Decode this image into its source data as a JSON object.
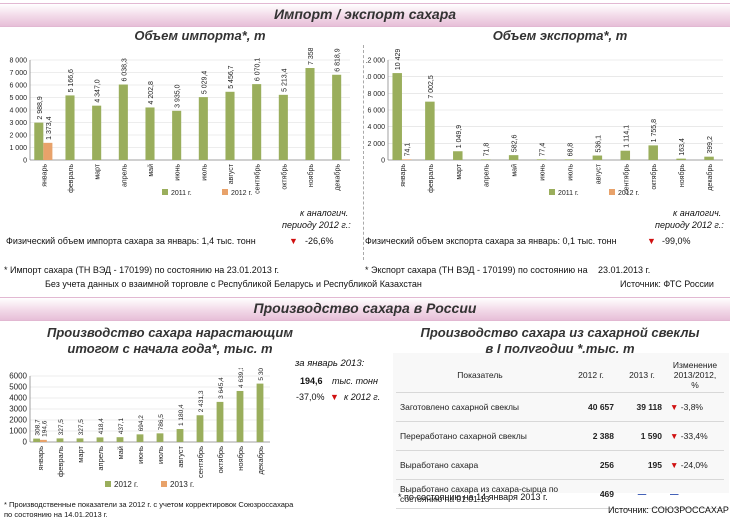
{
  "import_export": {
    "band_title": "Импорт / экспорт сахара",
    "import_title": "Объем импорта*, т",
    "export_title": "Объем экспорта*, т",
    "compare_label_1": "к аналогич.",
    "compare_label_2": "периоду 2012 г.:",
    "import_physical_text": "Физический объем импорта сахара за январь: 1,4 тыс. тонн",
    "import_change": "-26,6%",
    "export_physical_text": "Физический объем экспорта сахара за январь: 0,1 тыс. тонн",
    "export_change": "-99,0%",
    "import_footnote": "* Импорт сахара (ТН ВЭД - 170199) по состоянию на 23.01.2013 г.",
    "export_footnote": "* Экспорт сахара (ТН ВЭД - 170199) по состоянию на",
    "export_footnote_date": "23.01.2013 г.",
    "trade_note": "Без учета данных о взаимной торговле с Республикой Беларусь и Республикой Казахстан",
    "source": "Источник: ФТС России"
  },
  "production": {
    "band_title": "Производство сахара в России",
    "cumulative_title_1": "Производство сахара нарастающим",
    "cumulative_title_2": "итогом с начала года*, тыс. т",
    "january_label": "за январь 2013:",
    "january_value": "194,6",
    "january_unit": "тыс. тонн",
    "january_change": "-37,0%",
    "january_change_label": "к 2012 г.",
    "beet_title_1": "Производство сахара из сахарной свеклы",
    "beet_title_2": "в I полугодии *,тыс. т",
    "table_headers": [
      "Показатель",
      "2012 г.",
      "2013 г.",
      "Изменение 2013/2012, %"
    ],
    "table_rows": [
      {
        "label": "Заготовлено сахарной свеклы",
        "v2012": "40 657",
        "v2013": "39 118",
        "change": "-3,8%",
        "type": "down"
      },
      {
        "label": "Переработано сахарной свеклы",
        "v2012": "2 388",
        "v2013": "1 590",
        "change": "-33,4%",
        "type": "down"
      },
      {
        "label": "Выработано сахара",
        "v2012": "256",
        "v2013": "195",
        "change": "-24,0%",
        "type": "down"
      },
      {
        "label": "Выработано сахара из сахара-сырца по состоянию на 01.01.13",
        "v2012": "469",
        "v2013": "",
        "change": "",
        "type": "dash"
      }
    ],
    "table_footnote": "*  по состоянию на  14 января 2013 г.",
    "cumulative_footnote_1": "* Производственные показатели за 2012 г. с учетом корректировок Союзроссахара",
    "cumulative_footnote_2": "по состоянию на 14.01.2013 г.",
    "source": "Источник: СОЮЗРОССАХАР"
  },
  "colors": {
    "series_2011": "#9aae5c",
    "series_2012": "#e8a26a",
    "down": "#d01010",
    "dash": "#2244aa"
  },
  "chart_data": [
    {
      "type": "bar",
      "title": "Объем импорта*, т",
      "categories": [
        "январь",
        "февраль",
        "март",
        "апрель",
        "май",
        "июнь",
        "июль",
        "август",
        "сентябрь",
        "октябрь",
        "ноябрь",
        "декабрь"
      ],
      "series": [
        {
          "name": "2011 г.",
          "values": [
            2988.9,
            5166.6,
            4347.0,
            6038.3,
            4202.8,
            3935.0,
            5029.4,
            5456.7,
            6070.1,
            5213.4,
            7358.5,
            6818.9
          ],
          "labels": [
            "2 988,9",
            "5 166,6",
            "4 347,0",
            "6 038,3",
            "4 202,8",
            "3 935,0",
            "5 029,4",
            "5 456,7",
            "6 070,1",
            "5 213,4",
            "7 358,5",
            "6 818,9"
          ]
        },
        {
          "name": "2012 г.",
          "values": [
            1373.4,
            null,
            null,
            null,
            null,
            null,
            null,
            null,
            null,
            null,
            null,
            null
          ],
          "labels": [
            "1 373,4",
            "",
            "",
            "",
            "",
            "",
            "",
            "",
            "",
            "",
            "",
            ""
          ]
        }
      ],
      "yticks": [
        0,
        1000,
        2000,
        3000,
        4000,
        5000,
        6000,
        7000,
        8000
      ],
      "ytick_labels": [
        "0",
        "1 000",
        "2 000",
        "3 000",
        "4 000",
        "5 000",
        "6 000",
        "7 000",
        "8 000"
      ],
      "ylim": [
        0,
        8000
      ],
      "legend": "bottom"
    },
    {
      "type": "bar",
      "title": "Объем экспорта*, т",
      "categories": [
        "январь",
        "февраль",
        "март",
        "апрель",
        "май",
        "июнь",
        "июль",
        "август",
        "сентябрь",
        "октябрь",
        "ноябрь",
        "декабрь"
      ],
      "series": [
        {
          "name": "2011 г.",
          "values": [
            10429.8,
            7002.5,
            1049.9,
            71.8,
            582.6,
            77.4,
            68.8,
            536.1,
            1114.1,
            1755.8,
            163.4,
            399.2
          ],
          "labels": [
            "10 429,8",
            "7 002,5",
            "1 049,9",
            "71,8",
            "582,6",
            "77,4",
            "68,8",
            "536,1",
            "1 114,1",
            "1 755,8",
            "163,4",
            "399,2"
          ]
        },
        {
          "name": "2012 г.",
          "values": [
            74.1,
            null,
            null,
            null,
            null,
            null,
            null,
            null,
            null,
            null,
            null,
            null
          ],
          "labels": [
            "74,1",
            "",
            "",
            "",
            "",
            "",
            "",
            "",
            "",
            "",
            "",
            ""
          ]
        }
      ],
      "yticks": [
        0,
        2000,
        4000,
        6000,
        8000,
        10000,
        12000
      ],
      "ytick_labels": [
        "0",
        "2 000",
        "4 000",
        "6 000",
        "8 000",
        "10 000",
        "12 000"
      ],
      "ylim": [
        0,
        12000
      ],
      "legend": "bottom"
    },
    {
      "type": "bar",
      "title": "Производство сахара нарастающим итогом с начала года*, тыс. т",
      "categories": [
        "январь",
        "февраль",
        "март",
        "апрель",
        "май",
        "июнь",
        "июль",
        "август",
        "сентябрь",
        "октябрь",
        "ноябрь",
        "декабрь"
      ],
      "series": [
        {
          "name": "2012 г.",
          "values": [
            308.7,
            327.5,
            327.5,
            418.4,
            437.1,
            694.2,
            786.5,
            1180.4,
            2431.3,
            3645.4,
            4639.1,
            5308.5
          ],
          "labels": [
            "308,7",
            "327,5",
            "327,5",
            "418,4",
            "437,1",
            "694,2",
            "786,5",
            "1 180,4",
            "2 431,3",
            "3 645,4",
            "4 639,1",
            "5 308,5"
          ]
        },
        {
          "name": "2013 г.",
          "values": [
            194.6,
            null,
            null,
            null,
            null,
            null,
            null,
            null,
            null,
            null,
            null,
            null
          ],
          "labels": [
            "194,6",
            "",
            "",
            "",
            "",
            "",
            "",
            "",
            "",
            "",
            "",
            ""
          ]
        }
      ],
      "yticks": [
        0,
        1000,
        2000,
        3000,
        4000,
        5000,
        6000
      ],
      "ytick_labels": [
        "0",
        "1000",
        "2000",
        "3000",
        "4000",
        "5000",
        "6000"
      ],
      "ylim": [
        0,
        6000
      ],
      "legend": "bottom"
    }
  ]
}
